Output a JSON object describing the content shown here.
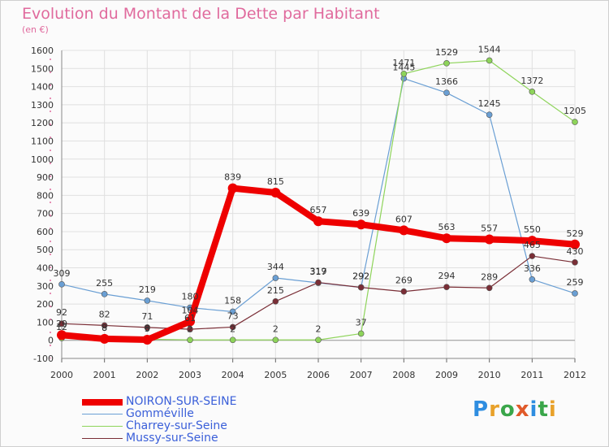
{
  "title": "Evolution du Montant de la Dette par Habitant",
  "unit": "(en €)",
  "logo": "Proxiti",
  "chart_data": {
    "type": "line",
    "title": "Evolution du Montant de la Dette par Habitant",
    "ylabel": "(en €)",
    "xlabel": "",
    "x": [
      2000,
      2001,
      2002,
      2003,
      2004,
      2005,
      2006,
      2007,
      2008,
      2009,
      2010,
      2011,
      2012
    ],
    "ylim": [
      -100,
      1600
    ],
    "yticks": [
      -100,
      0,
      100,
      200,
      300,
      400,
      500,
      600,
      700,
      800,
      900,
      1000,
      1100,
      1200,
      1300,
      1400,
      1500,
      1600
    ],
    "grid": true,
    "legend_position": "bottom-left",
    "series": [
      {
        "name": "NOIRON-SUR-SEINE",
        "color": "#ee0000",
        "values": [
          29,
          8,
          3,
          104,
          839,
          815,
          657,
          639,
          607,
          563,
          557,
          550,
          529
        ]
      },
      {
        "name": "Gomméville",
        "color": "#6a9fd4",
        "values": [
          309,
          255,
          219,
          180,
          158,
          344,
          317,
          292,
          1445,
          1366,
          1245,
          336,
          259
        ]
      },
      {
        "name": "Charrey-sur-Seine",
        "color": "#8ed45a",
        "values": [
          12,
          8,
          6,
          2,
          2,
          2,
          2,
          37,
          1471,
          1529,
          1544,
          1372,
          1205
        ]
      },
      {
        "name": "Mussy-sur-Seine",
        "color": "#7a2e36",
        "values": [
          92,
          82,
          71,
          61,
          73,
          215,
          319,
          292,
          269,
          294,
          289,
          465,
          430
        ]
      }
    ]
  }
}
